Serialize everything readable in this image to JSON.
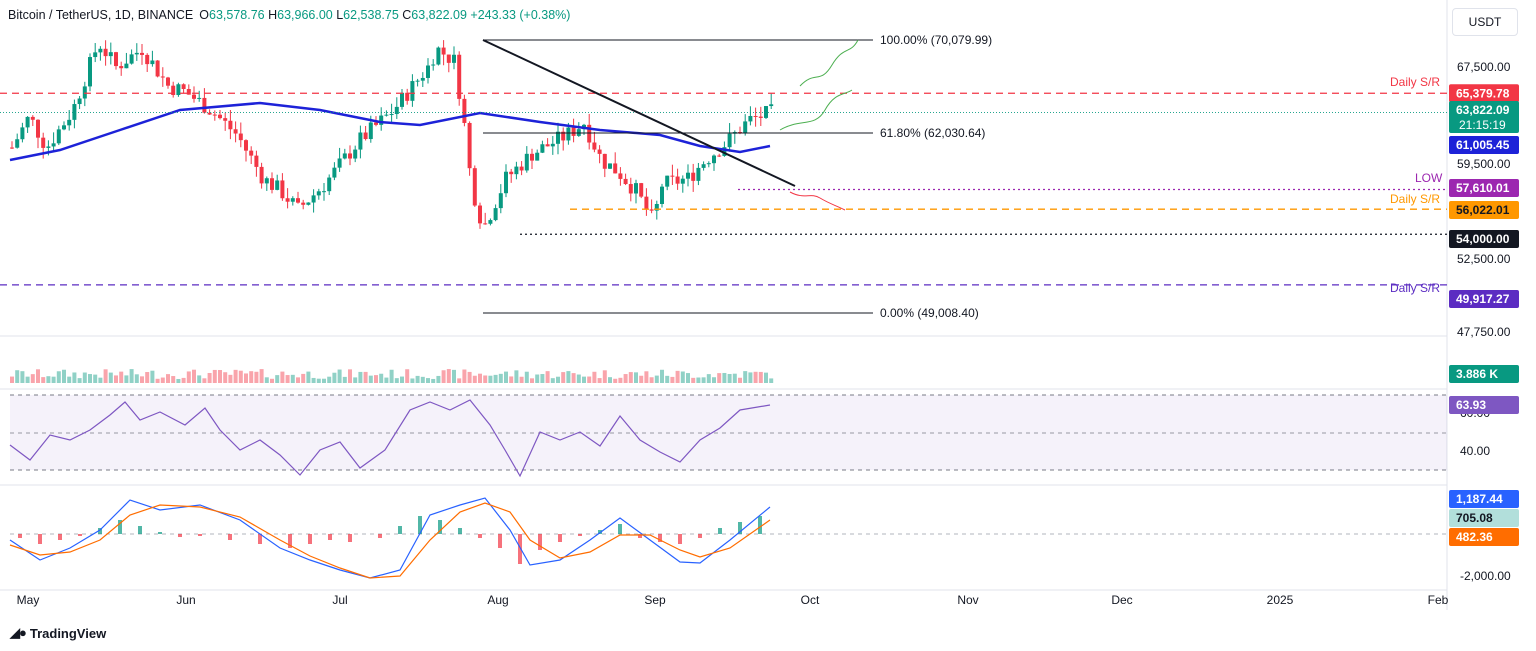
{
  "header": {
    "symbol": "Bitcoin / TetherUS, 1D, BINANCE",
    "o_label": "O",
    "o": "63,578.76",
    "h_label": "H",
    "h": "63,966.00",
    "l_label": "L",
    "l": "62,538.75",
    "c_label": "C",
    "c": "63,822.09",
    "change": "+243.33 (+0.38%)"
  },
  "currency": "USDT",
  "brand": "TradingView",
  "colors": {
    "up": "#089981",
    "down": "#f23645",
    "sma": "#1d22d8",
    "macd": "#2962ff",
    "signal": "#ff6d00",
    "rsi": "#7e57c2"
  },
  "chart_data": {
    "type": "candlestick",
    "y_axis": {
      "ticks": [
        "67,500.00",
        "59,500.00",
        "52,500.00",
        "47,750.00"
      ]
    },
    "x_axis": {
      "ticks": [
        "May",
        "Jun",
        "Jul",
        "Aug",
        "Sep",
        "Oct",
        "Nov",
        "Dec",
        "2025",
        "Feb"
      ]
    },
    "price_labels": {
      "last": {
        "value": "63,822.09",
        "countdown": "21:15:19"
      },
      "sma": "61,005.45",
      "low": "57,610.01",
      "sr_mid": "56,022.01",
      "support": "54,000.00",
      "sr_high": "65,379.78",
      "sr_low": "49,917.27"
    },
    "annotations": {
      "fib100": "100.00% (70,079.99)",
      "fib618": "61.80% (62,030.64)",
      "fib0": "0.00% (49,008.40)",
      "daily_sr": "Daily S/R",
      "low": "LOW"
    },
    "volume": {
      "label": "3.886 K"
    },
    "rsi": {
      "label": "63.93",
      "ticks": [
        "60.00",
        "40.00"
      ]
    },
    "macd": {
      "macd": "1,187.44",
      "hist": "705.08",
      "signal": "482.36",
      "ticks": [
        "-2,000.00"
      ]
    }
  }
}
